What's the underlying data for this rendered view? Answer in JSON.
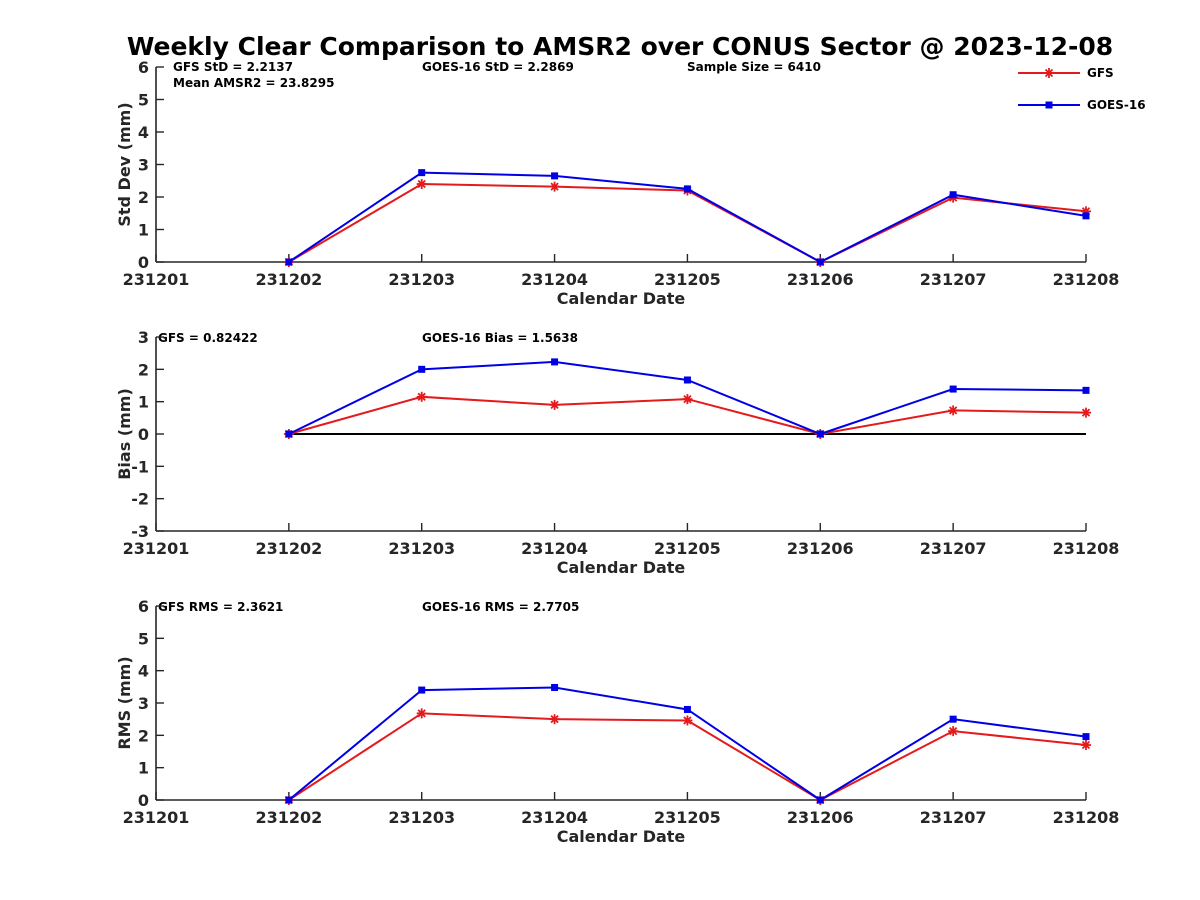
{
  "title": "Weekly Clear Comparison to AMSR2 over CONUS Sector @ 2023-12-08",
  "legend": [
    {
      "name": "GFS",
      "color": "#e41a1c",
      "marker": "asterisk"
    },
    {
      "name": "GOES-16",
      "color": "#0000e6",
      "marker": "square"
    }
  ],
  "chart_data": [
    {
      "type": "line",
      "xlabel": "Calendar Date",
      "ylabel": "Std Dev (mm)",
      "x": [
        "231201",
        "231202",
        "231203",
        "231204",
        "231205",
        "231206",
        "231207",
        "231208"
      ],
      "ylim": [
        0,
        6
      ],
      "yticks": [
        "0",
        "1",
        "2",
        "3",
        "4",
        "5",
        "6"
      ],
      "series": [
        {
          "name": "GFS",
          "values": [
            null,
            0,
            2.4,
            2.32,
            2.2,
            0,
            1.98,
            1.56
          ]
        },
        {
          "name": "GOES-16",
          "values": [
            null,
            0,
            2.75,
            2.65,
            2.25,
            0,
            2.07,
            1.42
          ]
        }
      ],
      "annotations": [
        "GFS StD = 2.2137",
        "Mean AMSR2 = 23.8295",
        "GOES-16 StD = 2.2869",
        "Sample Size = 6410"
      ],
      "zero_line": false
    },
    {
      "type": "line",
      "xlabel": "Calendar Date",
      "ylabel": "Bias (mm)",
      "x": [
        "231201",
        "231202",
        "231203",
        "231204",
        "231205",
        "231206",
        "231207",
        "231208"
      ],
      "ylim": [
        -3,
        3
      ],
      "yticks": [
        "-3",
        "-2",
        "-1",
        "0",
        "1",
        "2",
        "3"
      ],
      "series": [
        {
          "name": "GFS",
          "values": [
            null,
            0,
            1.15,
            0.9,
            1.08,
            0,
            0.73,
            0.66
          ]
        },
        {
          "name": "GOES-16",
          "values": [
            null,
            0,
            2.0,
            2.23,
            1.67,
            0,
            1.39,
            1.35
          ]
        }
      ],
      "annotations": [
        "GFS = 0.82422",
        "GOES-16 Bias  = 1.5638"
      ],
      "zero_line": true
    },
    {
      "type": "line",
      "xlabel": "Calendar Date",
      "ylabel": "RMS (mm)",
      "x": [
        "231201",
        "231202",
        "231203",
        "231204",
        "231205",
        "231206",
        "231207",
        "231208"
      ],
      "ylim": [
        0,
        6
      ],
      "yticks": [
        "0",
        "1",
        "2",
        "3",
        "4",
        "5",
        "6"
      ],
      "series": [
        {
          "name": "GFS",
          "values": [
            null,
            0,
            2.68,
            2.5,
            2.46,
            0,
            2.13,
            1.7
          ]
        },
        {
          "name": "GOES-16",
          "values": [
            null,
            0,
            3.4,
            3.48,
            2.8,
            0,
            2.5,
            1.96
          ]
        }
      ],
      "annotations": [
        "GFS RMS = 2.3621",
        "GOES-16 RMS = 2.7705"
      ],
      "zero_line": false
    }
  ]
}
